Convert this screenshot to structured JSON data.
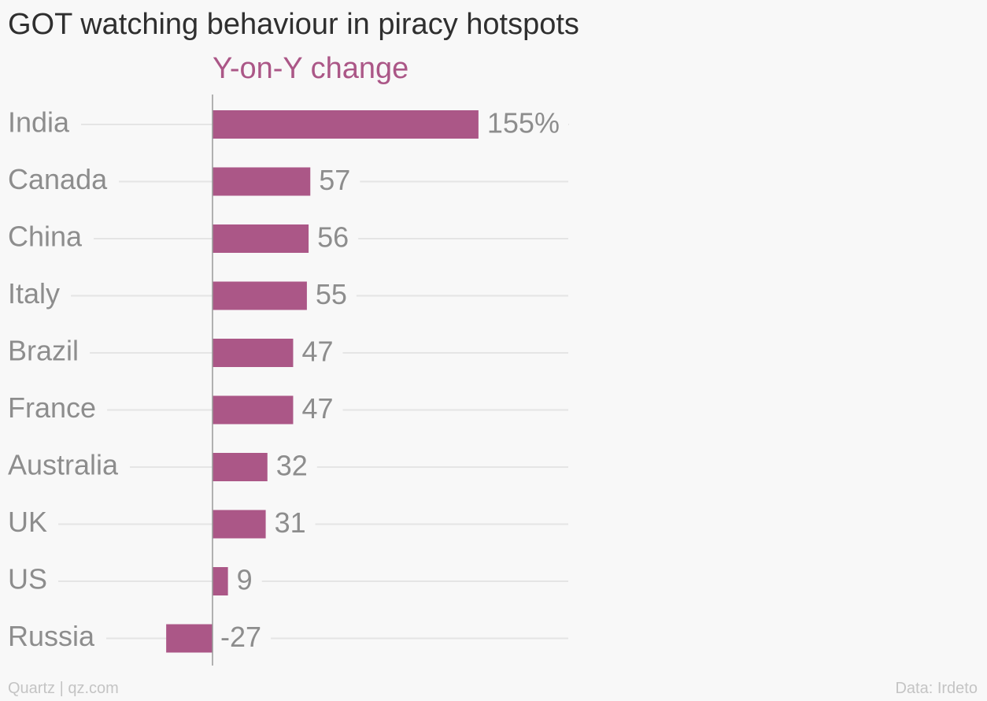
{
  "title": "GOT watching behaviour in piracy hotspots",
  "subtitle": "Y-on-Y change",
  "footer": {
    "source_left": "Quartz | qz.com",
    "source_right": "Data: Irdeto"
  },
  "colors": {
    "bar": "#ab5787",
    "subtitle": "#ab5787",
    "label": "#8d8d8d",
    "grid": "#e5e5e5",
    "axis": "#999999"
  },
  "chart_data": {
    "type": "bar",
    "orientation": "horizontal",
    "categories": [
      "India",
      "Canada",
      "China",
      "Italy",
      "Brazil",
      "France",
      "Australia",
      "UK",
      "US",
      "Russia"
    ],
    "values": [
      155,
      57,
      56,
      55,
      47,
      47,
      32,
      31,
      9,
      -27
    ],
    "value_labels": [
      "155%",
      "57",
      "56",
      "55",
      "47",
      "47",
      "32",
      "31",
      "9",
      "-27"
    ],
    "title": "GOT watching behaviour in piracy hotspots",
    "subtitle": "Y-on-Y change",
    "xlabel": "",
    "ylabel": "",
    "xlim": [
      -28,
      207
    ],
    "grid": true,
    "legend": "none"
  }
}
